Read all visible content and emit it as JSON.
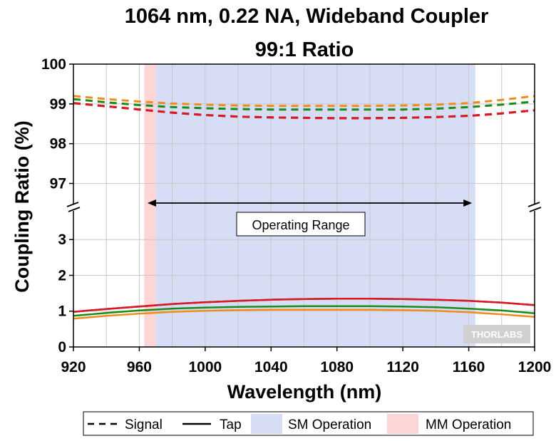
{
  "chart_data": {
    "type": "line",
    "title_line1": "1064 nm, 0.22 NA, Wideband Coupler",
    "title_line2": "99:1 Ratio",
    "xlabel": "Wavelength (nm)",
    "ylabel": "Coupling Ratio (%)",
    "xlim": [
      920,
      1200
    ],
    "x_ticks": [
      "920",
      "960",
      "1000",
      "1040",
      "1080",
      "1120",
      "1160",
      "1200"
    ],
    "upper_panel": {
      "ylim": [
        96.4,
        100
      ],
      "y_ticks": [
        "97",
        "98",
        "99",
        "100"
      ]
    },
    "lower_panel": {
      "ylim": [
        0,
        3.9
      ],
      "y_ticks": [
        "0",
        "1",
        "2",
        "3"
      ]
    },
    "x": [
      920,
      940,
      960,
      980,
      1000,
      1020,
      1040,
      1060,
      1080,
      1100,
      1120,
      1140,
      1160,
      1180,
      1200
    ],
    "signal_series": [
      {
        "color": "#1f1fd0",
        "values": [
          99.02,
          98.94,
          98.86,
          98.78,
          98.72,
          98.68,
          98.66,
          98.65,
          98.64,
          98.64,
          98.65,
          98.67,
          98.7,
          98.76,
          98.84
        ]
      },
      {
        "color": "#e01818",
        "values": [
          99.02,
          98.94,
          98.86,
          98.78,
          98.72,
          98.68,
          98.66,
          98.65,
          98.64,
          98.64,
          98.65,
          98.67,
          98.7,
          98.76,
          98.84
        ]
      },
      {
        "color": "#1a8a1a",
        "values": [
          99.12,
          99.04,
          98.97,
          98.92,
          98.89,
          98.87,
          98.86,
          98.86,
          98.86,
          98.86,
          98.86,
          98.88,
          98.92,
          98.98,
          99.06
        ]
      },
      {
        "color": "#f08c1c",
        "values": [
          99.2,
          99.12,
          99.06,
          99.01,
          98.98,
          98.96,
          98.95,
          98.95,
          98.95,
          98.95,
          98.96,
          98.98,
          99.02,
          99.1,
          99.2
        ]
      }
    ],
    "tap_series": [
      {
        "color": "#1f1fd0",
        "values": [
          0.98,
          1.06,
          1.13,
          1.2,
          1.25,
          1.29,
          1.32,
          1.34,
          1.35,
          1.35,
          1.34,
          1.32,
          1.29,
          1.24,
          1.17
        ]
      },
      {
        "color": "#e01818",
        "values": [
          0.98,
          1.06,
          1.13,
          1.2,
          1.25,
          1.29,
          1.32,
          1.34,
          1.35,
          1.35,
          1.34,
          1.32,
          1.29,
          1.24,
          1.17
        ]
      },
      {
        "color": "#1a8a1a",
        "values": [
          0.87,
          0.95,
          1.02,
          1.07,
          1.1,
          1.12,
          1.13,
          1.14,
          1.14,
          1.14,
          1.13,
          1.11,
          1.07,
          1.02,
          0.94
        ]
      },
      {
        "color": "#f08c1c",
        "values": [
          0.79,
          0.87,
          0.93,
          0.98,
          1.01,
          1.03,
          1.04,
          1.04,
          1.04,
          1.04,
          1.03,
          1.01,
          0.97,
          0.91,
          0.84
        ]
      }
    ],
    "sm_operation_range": [
      970,
      1164
    ],
    "mm_operation_range": [
      963,
      970
    ],
    "operating_range_arrow": [
      965,
      1162
    ],
    "annotation": "Operating Range",
    "watermark": "THORLABS",
    "legend": {
      "placement": "bottom",
      "items": [
        {
          "label": "Signal",
          "style": "dashed-line"
        },
        {
          "label": "Tap",
          "style": "solid-line"
        },
        {
          "label": "SM Operation",
          "style": "fill",
          "color": "#d6ddf5"
        },
        {
          "label": "MM Operation",
          "style": "fill",
          "color": "#fdd5d5"
        }
      ]
    },
    "colors": {
      "sm_fill": "#d6ddf5",
      "mm_fill": "#fdd5d5",
      "grid": "#c8c8c8"
    },
    "grid": true
  }
}
